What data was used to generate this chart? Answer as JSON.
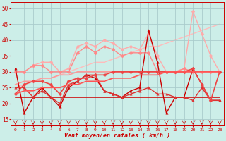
{
  "xlabel": "Vent moyen/en rafales ( km/h )",
  "xlim": [
    -0.5,
    23.5
  ],
  "ylim": [
    13,
    52
  ],
  "yticks": [
    15,
    20,
    25,
    30,
    35,
    40,
    45,
    50
  ],
  "xticks": [
    0,
    1,
    2,
    3,
    4,
    5,
    6,
    7,
    8,
    9,
    10,
    11,
    12,
    13,
    14,
    15,
    16,
    17,
    18,
    19,
    20,
    21,
    22,
    23
  ],
  "bg_color": "#cceee8",
  "grid_color": "#aacccc",
  "series": [
    {
      "y": [
        25,
        26,
        27,
        28,
        28,
        29,
        30,
        31,
        32,
        33,
        33,
        34,
        35,
        36,
        37,
        38,
        38,
        39,
        40,
        41,
        42,
        43,
        44,
        45
      ],
      "color": "#ffbbbb",
      "lw": 1.0,
      "marker": null,
      "ms": 0,
      "zorder": 1
    },
    {
      "y": [
        30,
        30,
        32,
        33,
        33,
        30,
        31,
        38,
        39,
        38,
        40,
        39,
        37,
        38,
        37,
        42,
        35,
        30,
        30,
        31,
        49,
        42,
        35,
        30
      ],
      "color": "#ffaaaa",
      "lw": 1.0,
      "marker": "D",
      "ms": 2.5,
      "zorder": 2
    },
    {
      "y": [
        26,
        27,
        27,
        28,
        28,
        29,
        29,
        30,
        30,
        30,
        30,
        30,
        30,
        30,
        30,
        30,
        30,
        30,
        30,
        30,
        30,
        30,
        30,
        30
      ],
      "color": "#ff9999",
      "lw": 1.2,
      "marker": null,
      "ms": 0,
      "zorder": 3
    },
    {
      "y": [
        30,
        30,
        32,
        32,
        30,
        30,
        30,
        36,
        38,
        36,
        38,
        37,
        35,
        36,
        36,
        36,
        30,
        30,
        30,
        31,
        30,
        30,
        30,
        30
      ],
      "color": "#ff8888",
      "lw": 1.0,
      "marker": "D",
      "ms": 2.5,
      "zorder": 4
    },
    {
      "y": [
        31,
        17,
        22,
        25,
        22,
        19,
        25,
        27,
        29,
        28,
        24,
        23,
        22,
        24,
        25,
        43,
        33,
        17,
        22,
        22,
        31,
        26,
        21,
        21
      ],
      "color": "#cc0000",
      "lw": 1.0,
      "marker": "^",
      "ms": 2.5,
      "zorder": 6
    },
    {
      "y": [
        22,
        22,
        22,
        22,
        22,
        22,
        22,
        22,
        22,
        22,
        22,
        22,
        22,
        22,
        22,
        22,
        22,
        22,
        22,
        22,
        22,
        22,
        22,
        22
      ],
      "color": "#cc1111",
      "lw": 1.2,
      "marker": null,
      "ms": 0,
      "zorder": 5
    },
    {
      "y": [
        25,
        25,
        22,
        24,
        22,
        20,
        26,
        27,
        29,
        29,
        24,
        23,
        22,
        23,
        24,
        25,
        23,
        23,
        22,
        22,
        21,
        25,
        21,
        21
      ],
      "color": "#dd3333",
      "lw": 1.0,
      "marker": "^",
      "ms": 2.5,
      "zorder": 7
    },
    {
      "y": [
        23,
        26,
        27,
        27,
        26,
        23,
        27,
        28,
        28,
        29,
        29,
        30,
        30,
        30,
        30,
        30,
        30,
        30,
        30,
        30,
        31,
        26,
        21,
        30
      ],
      "color": "#ee4444",
      "lw": 1.2,
      "marker": "D",
      "ms": 2.5,
      "zorder": 8
    },
    {
      "y": [
        23,
        24,
        24,
        25,
        25,
        25,
        26,
        26,
        27,
        27,
        27,
        28,
        28,
        28,
        29,
        29,
        29,
        30,
        30,
        30,
        30,
        30,
        30,
        30
      ],
      "color": "#ff5555",
      "lw": 1.2,
      "marker": null,
      "ms": 0,
      "zorder": 9
    }
  ]
}
